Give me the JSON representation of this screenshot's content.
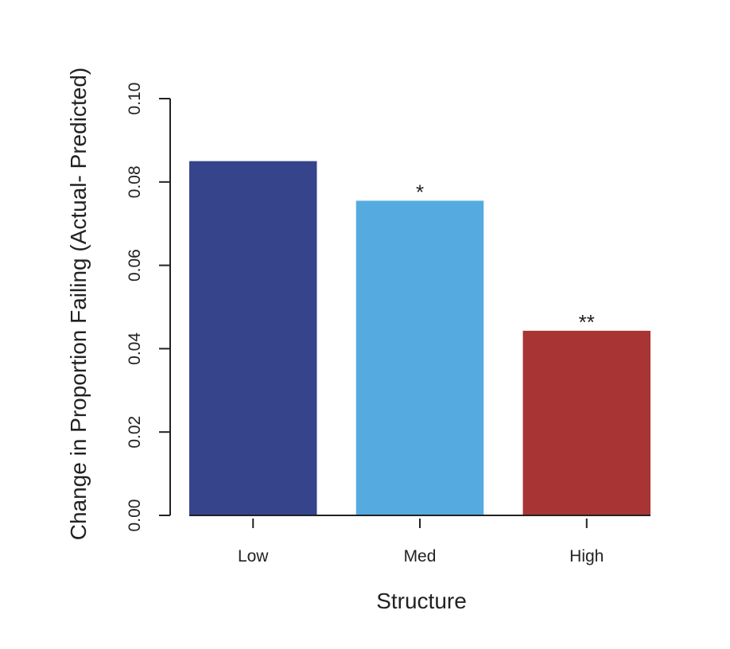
{
  "chart_data": {
    "type": "bar",
    "title": "",
    "xlabel": "Structure",
    "ylabel": "Change in Proportion Failing (Actual- Predicted)",
    "categories": [
      "Low",
      "Med",
      "High"
    ],
    "values": [
      0.085,
      0.0755,
      0.0443
    ],
    "colors": [
      "#36448c",
      "#55abe0",
      "#a83434"
    ],
    "significance": [
      "",
      "*",
      "**"
    ],
    "ylim": [
      0,
      0.1
    ],
    "yticks": [
      "0.00",
      "0.02",
      "0.04",
      "0.06",
      "0.08",
      "0.10"
    ],
    "grid": false,
    "legend": "none"
  }
}
